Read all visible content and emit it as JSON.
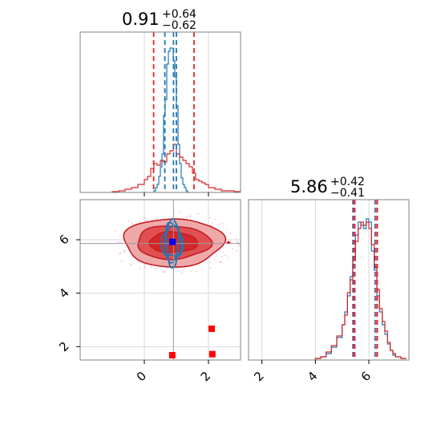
{
  "chart_data": [
    {
      "type": "histogram",
      "panel": "marginal-param-1",
      "title": {
        "value": "0.91",
        "plus": "+0.64",
        "minus": "−0.62"
      },
      "xlim": [
        -2.0,
        3.0
      ],
      "grid": true,
      "vlines": {
        "red_dashed": [
          0.29,
          1.55
        ],
        "blue_dashed": [
          0.64,
          0.91,
          1.0
        ]
      },
      "series": [
        {
          "color": "#1f77b4",
          "bin_edges": [
            0.3,
            0.35,
            0.4,
            0.45,
            0.5,
            0.55,
            0.6,
            0.65,
            0.7,
            0.75,
            0.8,
            0.85,
            0.9,
            0.95,
            1.0,
            1.05,
            1.1,
            1.15,
            1.2,
            1.25,
            1.3,
            1.35,
            1.4
          ],
          "heights": [
            0.01,
            0.03,
            0.05,
            0.1,
            0.16,
            0.24,
            0.48,
            0.58,
            0.8,
            0.88,
            0.9,
            0.9,
            0.82,
            0.72,
            0.54,
            0.3,
            0.18,
            0.09,
            0.05,
            0.03,
            0.01,
            0.0
          ]
        },
        {
          "color": "#d62728",
          "bin_edges": [
            -1.0,
            -0.8,
            -0.6,
            -0.4,
            -0.2,
            0.0,
            0.1,
            0.2,
            0.3,
            0.4,
            0.5,
            0.6,
            0.7,
            0.8,
            0.9,
            1.0,
            1.1,
            1.2,
            1.3,
            1.4,
            1.5,
            1.6,
            1.7,
            1.8,
            1.9,
            2.0,
            2.2,
            2.4,
            2.6,
            2.8,
            3.0
          ],
          "heights": [
            0.005,
            0.01,
            0.02,
            0.03,
            0.05,
            0.08,
            0.1,
            0.15,
            0.18,
            0.17,
            0.2,
            0.19,
            0.24,
            0.26,
            0.3,
            0.24,
            0.22,
            0.2,
            0.18,
            0.16,
            0.12,
            0.08,
            0.07,
            0.06,
            0.05,
            0.03,
            0.02,
            0.01,
            0.01,
            0.005
          ]
        }
      ],
      "ticks": [
        0,
        2
      ]
    },
    {
      "type": "histogram",
      "panel": "marginal-param-2",
      "title": {
        "value": "5.86",
        "plus": "+0.42",
        "minus": "−0.41"
      },
      "xlim": [
        1.5,
        7.5
      ],
      "xticks": [
        "2",
        "4",
        "6"
      ],
      "xtick_values": [
        2,
        4,
        6
      ],
      "grid": true,
      "vlines": {
        "blue_dashed": [
          5.45,
          6.28
        ],
        "red_dashed": [
          5.47,
          6.31
        ],
        "purple_dashed": [
          5.45,
          6.28
        ]
      },
      "series": [
        {
          "color": "#1f77b4",
          "bin_edges": [
            4.0,
            4.2,
            4.4,
            4.6,
            4.8,
            5.0,
            5.1,
            5.2,
            5.3,
            5.4,
            5.5,
            5.6,
            5.7,
            5.8,
            5.9,
            6.0,
            6.1,
            6.2,
            6.3,
            6.4,
            6.5,
            6.6,
            6.7,
            6.8,
            6.9,
            7.0,
            7.2,
            7.4
          ],
          "heights": [
            0.01,
            0.02,
            0.04,
            0.08,
            0.14,
            0.22,
            0.3,
            0.4,
            0.52,
            0.64,
            0.78,
            0.86,
            0.84,
            0.82,
            0.88,
            0.86,
            0.68,
            0.56,
            0.4,
            0.3,
            0.22,
            0.16,
            0.1,
            0.06,
            0.03,
            0.02,
            0.01
          ]
        },
        {
          "color": "#d62728",
          "bin_edges": [
            4.0,
            4.2,
            4.4,
            4.6,
            4.8,
            5.0,
            5.1,
            5.2,
            5.3,
            5.4,
            5.5,
            5.6,
            5.7,
            5.8,
            5.9,
            6.0,
            6.1,
            6.2,
            6.3,
            6.4,
            6.5,
            6.6,
            6.7,
            6.8,
            6.9,
            7.0,
            7.2,
            7.4
          ],
          "heights": [
            0.01,
            0.02,
            0.05,
            0.09,
            0.15,
            0.22,
            0.28,
            0.42,
            0.5,
            0.62,
            0.74,
            0.82,
            0.86,
            0.84,
            0.86,
            0.82,
            0.72,
            0.58,
            0.44,
            0.32,
            0.24,
            0.18,
            0.11,
            0.06,
            0.04,
            0.02,
            0.01
          ]
        }
      ]
    },
    {
      "type": "scatter",
      "panel": "joint-param-1-param-2",
      "xlim": [
        -2.0,
        3.0
      ],
      "ylim": [
        1.5,
        7.5
      ],
      "xticks": [
        "0",
        "2"
      ],
      "xtick_values": [
        0,
        2
      ],
      "yticks": [
        "2",
        "4",
        "6"
      ],
      "ytick_values": [
        2,
        4,
        6
      ],
      "grid": true,
      "truth_lines": {
        "x": 0.91,
        "y": 5.86
      },
      "red_contours": [
        {
          "level": "outer",
          "cx": 0.9,
          "cy": 5.9,
          "rx": 1.55,
          "ry": 0.9,
          "fill": "#f0a9a9"
        },
        {
          "level": "mid",
          "cx": 0.9,
          "cy": 5.9,
          "rx": 1.15,
          "ry": 0.62,
          "fill": "#e05050"
        },
        {
          "level": "inner",
          "cx": 0.9,
          "cy": 5.9,
          "rx": 0.75,
          "ry": 0.38,
          "fill": "#d62728"
        }
      ],
      "blue_contours": [
        {
          "cx": 0.88,
          "cy": 5.9,
          "rx": 0.18,
          "ry": 0.92
        },
        {
          "cx": 0.88,
          "cy": 5.9,
          "rx": 0.26,
          "ry": 0.72
        },
        {
          "cx": 0.88,
          "cy": 5.9,
          "rx": 0.34,
          "ry": 0.55
        }
      ],
      "outlier_points": [
        {
          "x": 0.87,
          "y": 1.68
        },
        {
          "x": 2.1,
          "y": 2.67
        },
        {
          "x": 2.12,
          "y": 1.72
        }
      ],
      "best_fit_point": {
        "x": 0.88,
        "y": 5.92
      }
    }
  ]
}
